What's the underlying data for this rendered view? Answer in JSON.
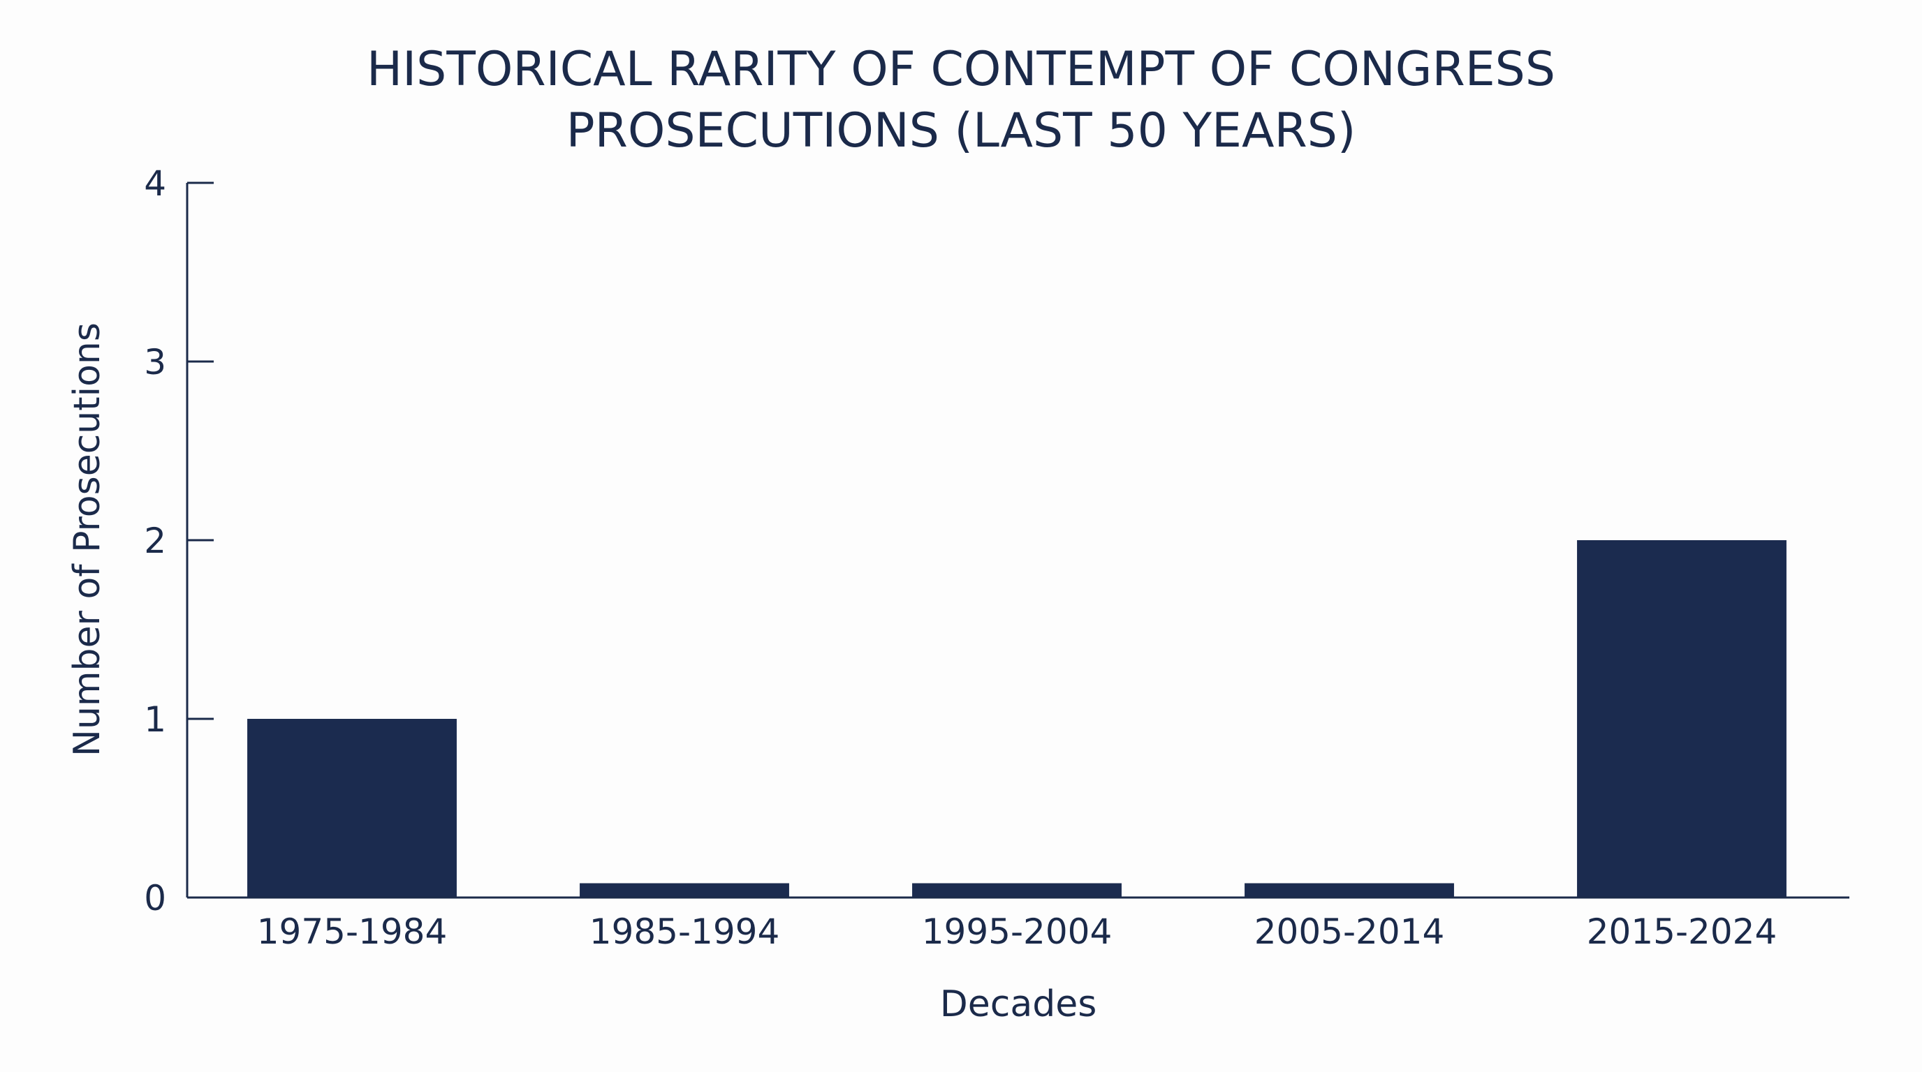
{
  "chart_data": {
    "type": "bar",
    "title_lines": [
      "HISTORICAL RARITY OF CONTEMPT OF CONGRESS",
      "PROSECUTIONS (LAST 50 YEARS)"
    ],
    "xlabel": "Decades",
    "ylabel": "Number of Prosecutions",
    "categories": [
      "1975-1984",
      "1985-1994",
      "1995-2004",
      "2005-2014",
      "2015-2024"
    ],
    "values": [
      1,
      0.08,
      0.08,
      0.08,
      2
    ],
    "ylim": [
      0,
      4
    ],
    "yticks": [
      "0",
      "1",
      "2",
      "3",
      "4"
    ],
    "grid": false,
    "bar_color": "#1b2b4f",
    "text_color": "#1b2a4a"
  }
}
